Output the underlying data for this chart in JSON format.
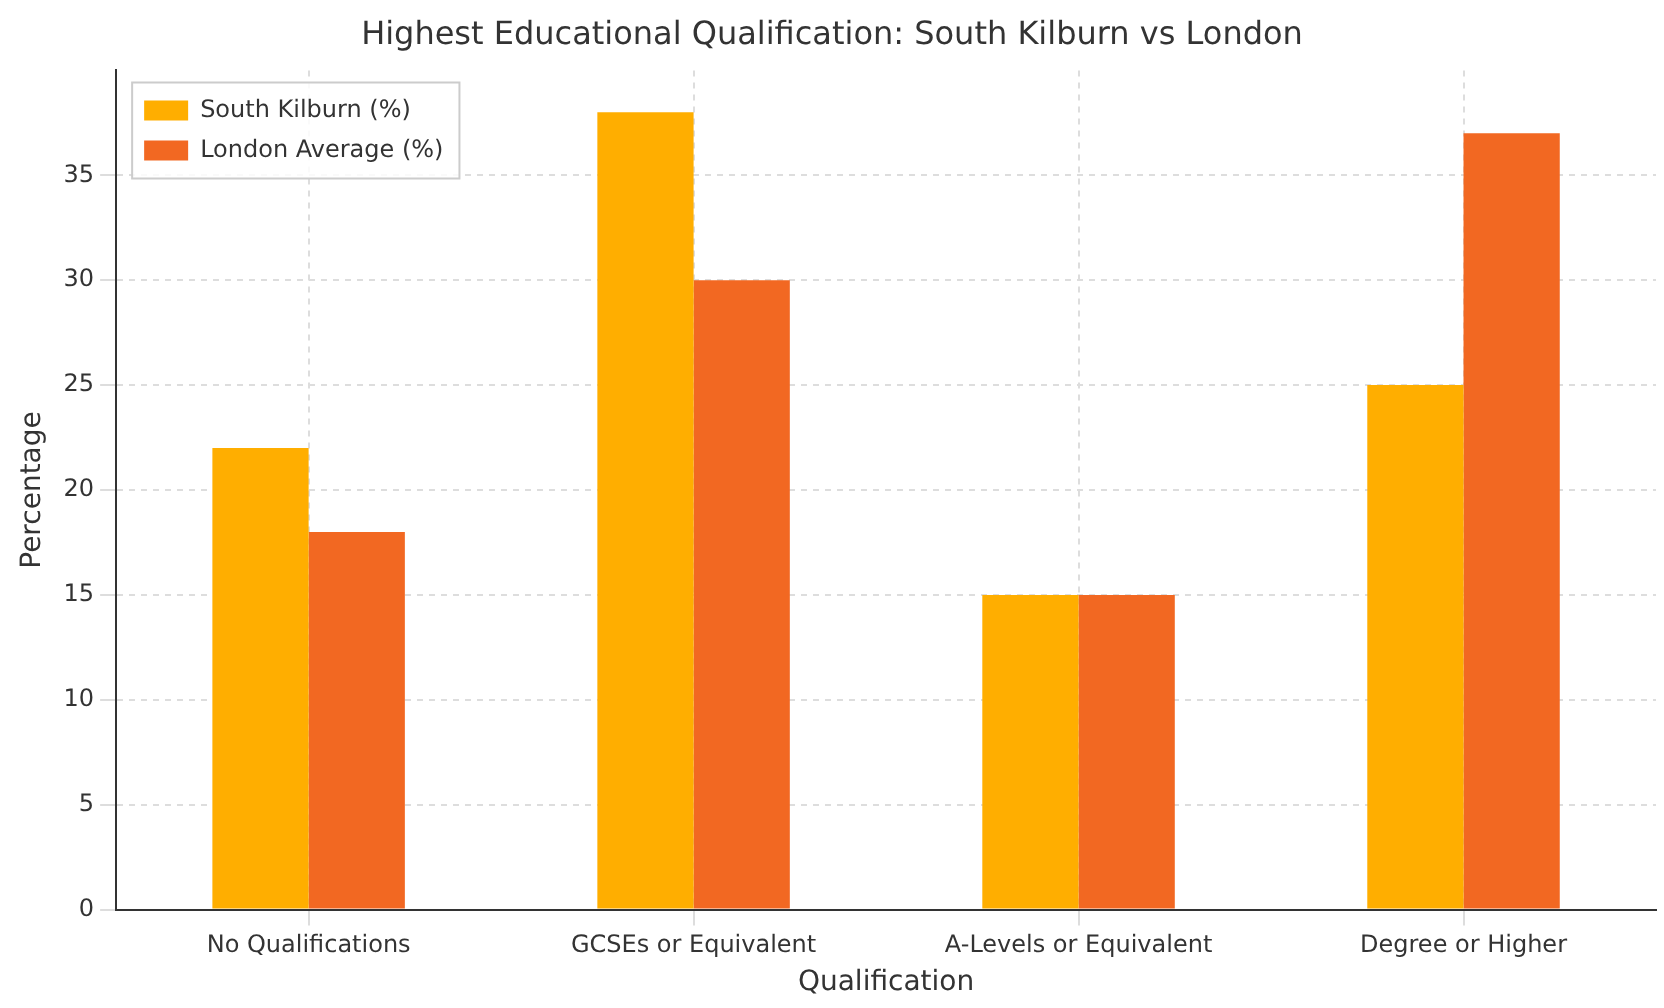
{
  "chart_data": {
    "type": "bar",
    "title": "Highest Educational Qualification: South Kilburn vs London",
    "xlabel": "Qualification",
    "ylabel": "Percentage",
    "categories": [
      "No Qualifications",
      "GCSEs or Equivalent",
      "A-Levels or Equivalent",
      "Degree or Higher"
    ],
    "series": [
      {
        "name": "South Kilburn (%)",
        "color": "#ffae00",
        "values": [
          22,
          38,
          15,
          25
        ]
      },
      {
        "name": "London Average (%)",
        "color": "#f26822",
        "values": [
          18,
          30,
          15,
          37
        ]
      }
    ],
    "ylim": [
      0,
      40
    ],
    "yticks": [
      0,
      5,
      10,
      15,
      20,
      25,
      30,
      35
    ],
    "grid": true,
    "legend": "top left"
  }
}
